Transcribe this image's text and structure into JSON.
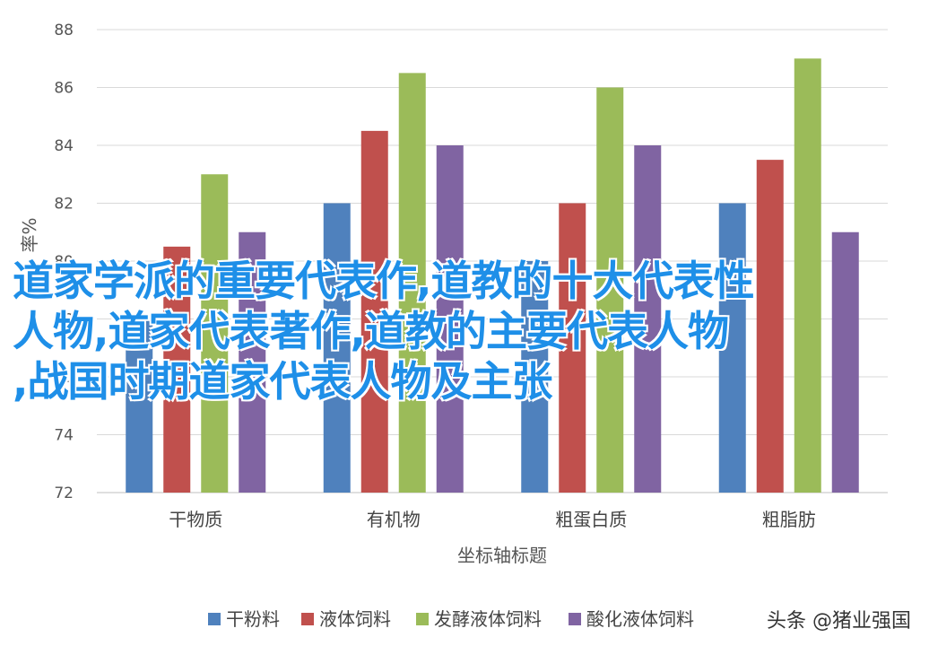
{
  "chart_data": {
    "type": "bar",
    "categories": [
      "干物质",
      "有机物",
      "粗蛋白质",
      "粗脂肪"
    ],
    "series": [
      {
        "name": "干粉料",
        "color": "#4f81bd",
        "values": [
          78.0,
          82.0,
          80.0,
          82.0
        ]
      },
      {
        "name": "液体饲料",
        "color": "#c0504d",
        "values": [
          80.5,
          84.5,
          82.0,
          83.5
        ]
      },
      {
        "name": "发酵液体饲料",
        "color": "#9bbb59",
        "values": [
          83.0,
          86.5,
          86.0,
          87.0
        ]
      },
      {
        "name": "酸化液体饲料",
        "color": "#8064a2",
        "values": [
          81.0,
          84.0,
          84.0,
          81.0
        ]
      }
    ],
    "xlabel": "坐标轴标题",
    "ylabel": "率%",
    "ylim": [
      72,
      88
    ],
    "yticks": [
      72,
      74,
      76,
      78,
      80,
      82,
      84,
      86,
      88
    ],
    "grid": true,
    "legend_position": "bottom"
  },
  "overlay_text": [
    "道家学派的重要代表作,道教的十大代表性",
    "人物,道家代表著作,道教的主要代表人物",
    ",战国时期道家代表人物及主张"
  ],
  "watermark": "头条 @猪业强国"
}
